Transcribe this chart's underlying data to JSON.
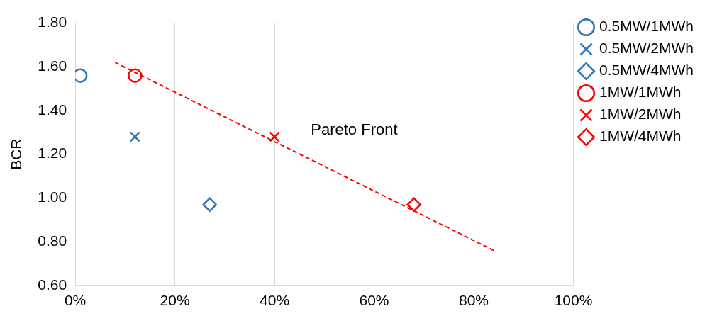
{
  "chart_data": {
    "type": "scatter",
    "ylabel": "BCR",
    "xlim": [
      0,
      100
    ],
    "xticks": [
      {
        "value": 0,
        "label": "0%"
      },
      {
        "value": 20,
        "label": "20%"
      },
      {
        "value": 40,
        "label": "40%"
      },
      {
        "value": 60,
        "label": "60%"
      },
      {
        "value": 80,
        "label": "80%"
      },
      {
        "value": 100,
        "label": "100%"
      }
    ],
    "ylim": [
      0.6,
      1.8
    ],
    "yticks": [
      {
        "value": 0.6,
        "label": "0.60"
      },
      {
        "value": 0.8,
        "label": "0.80"
      },
      {
        "value": 1.0,
        "label": "1.00"
      },
      {
        "value": 1.2,
        "label": "1.20"
      },
      {
        "value": 1.4,
        "label": "1.40"
      },
      {
        "value": 1.6,
        "label": "1.60"
      },
      {
        "value": 1.8,
        "label": "1.80"
      }
    ],
    "grid": true,
    "legend": "right",
    "series": [
      {
        "name": "0.5MW/1MWh",
        "color": "#2e75b6",
        "marker": "circle",
        "x": [
          1
        ],
        "values": [
          1.56
        ]
      },
      {
        "name": "0.5MW/2MWh",
        "color": "#2e75b6",
        "marker": "cross",
        "x": [
          12
        ],
        "values": [
          1.28
        ]
      },
      {
        "name": "0.5MW/4MWh",
        "color": "#2e75b6",
        "marker": "diamond",
        "x": [
          27
        ],
        "values": [
          0.97
        ]
      },
      {
        "name": "1MW/1MWh",
        "color": "#ff0000",
        "marker": "circle",
        "x": [
          12
        ],
        "values": [
          1.56
        ]
      },
      {
        "name": "1MW/2MWh",
        "color": "#ff0000",
        "marker": "cross",
        "x": [
          40
        ],
        "values": [
          1.28
        ]
      },
      {
        "name": "1MW/4MWh",
        "color": "#ff0000",
        "marker": "diamond",
        "x": [
          68
        ],
        "values": [
          0.97
        ]
      },
      {
        "type": "line",
        "color": "#ff0000",
        "line_style": "dashed",
        "marker": "none",
        "x": [
          8,
          84
        ],
        "values": [
          1.62,
          0.76
        ]
      }
    ],
    "annotations": [
      "Pareto Front"
    ]
  }
}
